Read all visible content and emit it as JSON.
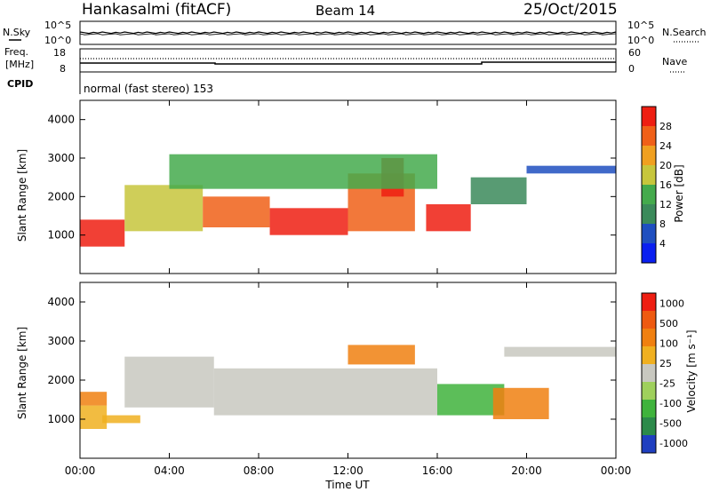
{
  "header": {
    "station": "Hankasalmi (fitACF)",
    "beam": "Beam 14",
    "date": "25/Oct/2015"
  },
  "top_panels": {
    "nsky_label": "N.Sky",
    "nsky_ticks": [
      "10^5",
      "10^0"
    ],
    "nsearch_label": "N.Search",
    "nsearch_ticks": [
      "10^5",
      "10^0"
    ],
    "freq_label_1": "Freq.",
    "freq_label_2": "[MHz]",
    "freq_ticks": [
      "18",
      "8"
    ],
    "nave_label": "Nave",
    "nave_ticks": [
      "60",
      "0"
    ],
    "cpid_label": "CPID",
    "cpid_text": "normal (fast stereo) 153"
  },
  "chart_data": [
    {
      "type": "heatmap",
      "name": "power",
      "ylabel": "Slant Range [km]",
      "ylim": [
        0,
        4500
      ],
      "yticks": [
        1000,
        2000,
        3000,
        4000
      ],
      "colorbar_label": "Power [dB]",
      "colorbar_ticks": [
        "4",
        "8",
        "12",
        "16",
        "20",
        "24",
        "28"
      ],
      "colors": [
        "#0a1ff0",
        "#1f4fc0",
        "#3b8a5a",
        "#44aa4c",
        "#c7c63c",
        "#f0a020",
        "#f06018",
        "#ee1e12"
      ],
      "bands": [
        {
          "t0": 0.0,
          "t1": 2.0,
          "r0": 700,
          "r1": 1400,
          "level": 7
        },
        {
          "t0": 2.0,
          "t1": 5.5,
          "r0": 1100,
          "r1": 2300,
          "level": 4
        },
        {
          "t0": 5.5,
          "t1": 8.5,
          "r0": 1200,
          "r1": 2000,
          "level": 6
        },
        {
          "t0": 8.5,
          "t1": 12.0,
          "r0": 1000,
          "r1": 1700,
          "level": 7
        },
        {
          "t0": 12.0,
          "t1": 15.0,
          "r0": 1100,
          "r1": 2600,
          "level": 6
        },
        {
          "t0": 13.5,
          "t1": 14.5,
          "r0": 2000,
          "r1": 3000,
          "level": 7
        },
        {
          "t0": 15.5,
          "t1": 17.5,
          "r0": 1100,
          "r1": 1800,
          "level": 7
        },
        {
          "t0": 17.5,
          "t1": 20.0,
          "r0": 1800,
          "r1": 2500,
          "level": 2
        },
        {
          "t0": 20.0,
          "t1": 24.0,
          "r0": 2600,
          "r1": 2800,
          "level": 1
        },
        {
          "t0": 4.0,
          "t1": 16.0,
          "r0": 2200,
          "r1": 3100,
          "level": 3
        }
      ]
    },
    {
      "type": "heatmap",
      "name": "velocity",
      "ylabel": "Slant Range [km]",
      "ylim": [
        0,
        4500
      ],
      "yticks": [
        1000,
        2000,
        3000,
        4000
      ],
      "colorbar_label": "Velocity [m s⁻¹]",
      "colorbar_ticks": [
        "1000",
        "500",
        "100",
        "25",
        "-25",
        "-100",
        "-500",
        "-1000"
      ],
      "colors": [
        "#1f3fc0",
        "#2c8a4a",
        "#3fb33c",
        "#9fd05c",
        "#c8c8c0",
        "#f0b020",
        "#f08010",
        "#ee5a10",
        "#ee1e12"
      ],
      "bands": [
        {
          "t0": 0.0,
          "t1": 1.2,
          "r0": 750,
          "r1": 1350,
          "level": 5
        },
        {
          "t0": 0.0,
          "t1": 1.2,
          "r0": 1350,
          "r1": 1700,
          "level": 6
        },
        {
          "t0": 1.0,
          "t1": 2.7,
          "r0": 900,
          "r1": 1100,
          "level": 5
        },
        {
          "t0": 2.0,
          "t1": 6.0,
          "r0": 1300,
          "r1": 2600,
          "level": 4
        },
        {
          "t0": 6.0,
          "t1": 16.0,
          "r0": 1100,
          "r1": 2300,
          "level": 4
        },
        {
          "t0": 16.0,
          "t1": 19.0,
          "r0": 1100,
          "r1": 1900,
          "level": 2
        },
        {
          "t0": 18.5,
          "t1": 21.0,
          "r0": 1000,
          "r1": 1800,
          "level": 6
        },
        {
          "t0": 19.0,
          "t1": 24.0,
          "r0": 2600,
          "r1": 2850,
          "level": 4
        },
        {
          "t0": 12.0,
          "t1": 15.0,
          "r0": 2400,
          "r1": 2900,
          "level": 6
        }
      ]
    }
  ],
  "x_axis": {
    "xlabel": "Time UT",
    "xlim": [
      0,
      24
    ],
    "ticks": [
      "00:00",
      "04:00",
      "08:00",
      "12:00",
      "16:00",
      "20:00",
      "00:00"
    ]
  }
}
